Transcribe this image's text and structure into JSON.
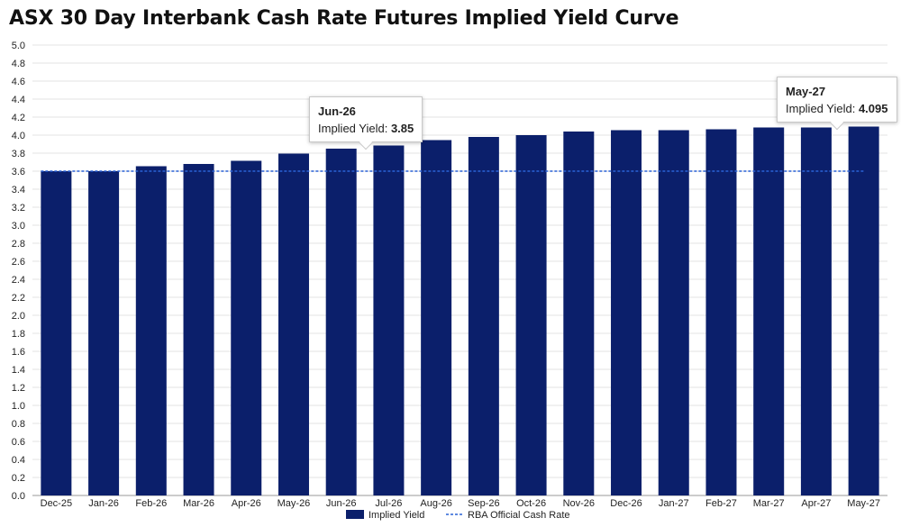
{
  "chart_data": {
    "type": "bar",
    "title": "ASX 30 Day Interbank Cash Rate Futures Implied Yield Curve",
    "categories": [
      "Dec-25",
      "Jan-26",
      "Feb-26",
      "Mar-26",
      "Apr-26",
      "May-26",
      "Jun-26",
      "Jul-26",
      "Aug-26",
      "Sep-26",
      "Oct-26",
      "Nov-26",
      "Dec-26",
      "Jan-27",
      "Feb-27",
      "Mar-27",
      "Apr-27",
      "May-27"
    ],
    "series": [
      {
        "name": "Implied Yield",
        "color": "#0b1f6b",
        "values": [
          3.6,
          3.6,
          3.655,
          3.68,
          3.715,
          3.795,
          3.85,
          3.885,
          3.945,
          3.98,
          4.0,
          4.04,
          4.055,
          4.055,
          4.065,
          4.085,
          4.085,
          4.095
        ]
      },
      {
        "name": "RBA Official Cash Rate",
        "color": "#2a62d6",
        "style": "dashed",
        "value": 3.6
      }
    ],
    "ylim": [
      0,
      5.0
    ],
    "ytick_step": 0.2,
    "yticks": [
      "0.0",
      "0.2",
      "0.4",
      "0.6",
      "0.8",
      "1.0",
      "1.2",
      "1.4",
      "1.6",
      "1.8",
      "2.0",
      "2.2",
      "2.4",
      "2.6",
      "2.8",
      "3.0",
      "3.2",
      "3.4",
      "3.6",
      "3.8",
      "4.0",
      "4.2",
      "4.4",
      "4.6",
      "4.8",
      "5.0"
    ],
    "grid": true,
    "legend": "bottom-center",
    "tooltips": [
      {
        "category": "Jun-26",
        "label": "Implied Yield:",
        "value": "3.85"
      },
      {
        "category": "May-27",
        "label": "Implied Yield:",
        "value": "4.095"
      }
    ]
  }
}
